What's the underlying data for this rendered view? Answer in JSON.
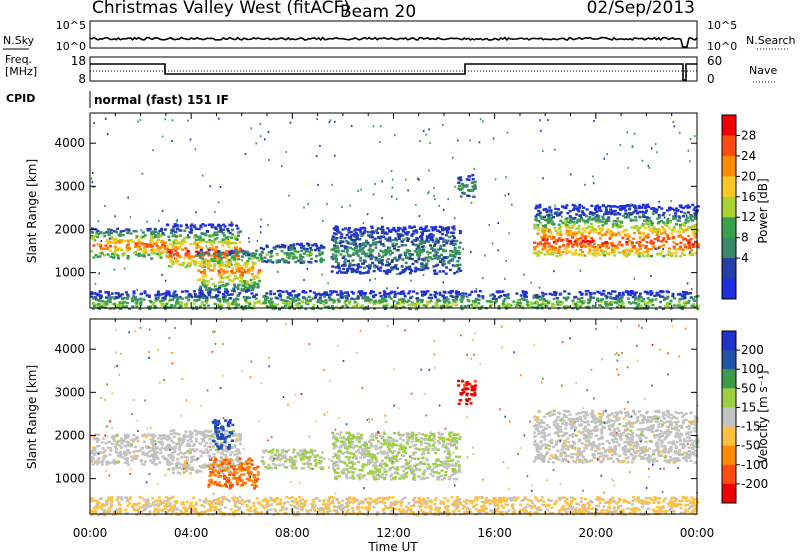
{
  "header": {
    "title": "Christmas Valley West (fitACF)",
    "beam": "Beam 20",
    "date": "02/Sep/2013"
  },
  "summary_panels": {
    "nsky_label": "N.Sky",
    "nsky_scale": [
      "10^5",
      "10^0"
    ],
    "nsearch_label": "N.Search",
    "freq_label": "Freq.",
    "freq_unit": "[MHz]",
    "freq_scale": [
      "18",
      "8"
    ],
    "nave_scale": [
      "60",
      "0"
    ],
    "nave_label": "Nave",
    "cpid_label": "CPID",
    "cpid_text": "normal (fast) 151 IF"
  },
  "colorbars": {
    "power": {
      "title": "Power [dB]",
      "ticks": [
        "28",
        "24",
        "20",
        "16",
        "12",
        "8",
        "4"
      ],
      "colors": [
        "#f00000",
        "#ff4a10",
        "#ff8a00",
        "#ffc820",
        "#a8d230",
        "#3aa04a",
        "#3a8a6a",
        "#243fa6",
        "#1f2fe0"
      ]
    },
    "velocity": {
      "title": "Velocity [m s⁻¹]",
      "ticks": [
        "200",
        "100",
        "50",
        "15",
        "-15",
        "-50",
        "-100",
        "-200"
      ],
      "colors": [
        "#1d35c9",
        "#2255a8",
        "#3b9c47",
        "#9cd040",
        "#c2c2c2",
        "#ffc040",
        "#ff8c00",
        "#ff4a10",
        "#ee0000"
      ]
    }
  },
  "chart_data": [
    {
      "type": "heatmap",
      "name": "Power",
      "ylabel": "Slant Range [km]",
      "xlabel": "Time UT",
      "x_ticks": [
        "00:00",
        "04:00",
        "08:00",
        "12:00",
        "16:00",
        "20:00",
        "00:00"
      ],
      "y_ticks": [
        1000,
        2000,
        3000,
        4000
      ],
      "xlim_hours": [
        0,
        24
      ],
      "ylim_km": [
        180,
        4700
      ],
      "clim_db": [
        0,
        32
      ],
      "scatter_regions": [
        {
          "t": [
            0.0,
            3.0
          ],
          "range_km": [
            1350,
            2050
          ],
          "center_km": 1650,
          "peak_db": 26
        },
        {
          "t": [
            3.0,
            5.9
          ],
          "range_km": [
            1150,
            2150
          ],
          "center_km": 1480,
          "peak_db": 28
        },
        {
          "t": [
            4.2,
            6.7
          ],
          "range_km": [
            600,
            1550
          ],
          "center_km": 1050,
          "peak_db": 24
        },
        {
          "t": [
            6.7,
            9.2
          ],
          "range_km": [
            1250,
            1700
          ],
          "center_km": 1420,
          "peak_db": 14
        },
        {
          "t": [
            9.5,
            14.6
          ],
          "range_km": [
            1000,
            2100
          ],
          "center_km": 1500,
          "peak_db": 10
        },
        {
          "t": [
            14.5,
            15.2
          ],
          "range_km": [
            2750,
            3300
          ],
          "center_km": 2950,
          "peak_db": 12
        },
        {
          "t": [
            17.5,
            24.0
          ],
          "range_km": [
            1400,
            2600
          ],
          "center_km": 1750,
          "peak_db": 28
        },
        {
          "t": [
            0.0,
            24.0
          ],
          "range_km": [
            180,
            600
          ],
          "center_km": 300,
          "peak_db": 16
        }
      ]
    },
    {
      "type": "heatmap",
      "name": "Velocity",
      "ylabel": "Slant Range [km]",
      "xlabel": "Time UT",
      "x_ticks": [
        "00:00",
        "04:00",
        "08:00",
        "12:00",
        "16:00",
        "20:00",
        "00:00"
      ],
      "y_ticks": [
        1000,
        2000,
        3000,
        4000
      ],
      "xlim_hours": [
        0,
        24
      ],
      "ylim_km": [
        180,
        4700
      ],
      "clim_ms": [
        -250,
        250
      ],
      "scatter_regions": [
        {
          "t": [
            0.0,
            3.0
          ],
          "range_km": [
            1350,
            2050
          ],
          "velocity_ms": 0
        },
        {
          "t": [
            3.0,
            5.9
          ],
          "range_km": [
            1150,
            2150
          ],
          "velocity_ms": 0
        },
        {
          "t": [
            4.8,
            5.6
          ],
          "range_km": [
            1700,
            2400
          ],
          "velocity_ms": 180
        },
        {
          "t": [
            4.6,
            6.6
          ],
          "range_km": [
            800,
            1500
          ],
          "velocity_ms": -130
        },
        {
          "t": [
            6.7,
            9.2
          ],
          "range_km": [
            1250,
            1700
          ],
          "velocity_ms": 30
        },
        {
          "t": [
            9.5,
            14.6
          ],
          "range_km": [
            1000,
            2100
          ],
          "velocity_ms": 30
        },
        {
          "t": [
            14.5,
            15.2
          ],
          "range_km": [
            2750,
            3300
          ],
          "velocity_ms": -220
        },
        {
          "t": [
            17.5,
            24.0
          ],
          "range_km": [
            1400,
            2600
          ],
          "velocity_ms": 0
        },
        {
          "t": [
            0.0,
            24.0
          ],
          "range_km": [
            180,
            600
          ],
          "velocity_ms": -40
        }
      ]
    }
  ]
}
